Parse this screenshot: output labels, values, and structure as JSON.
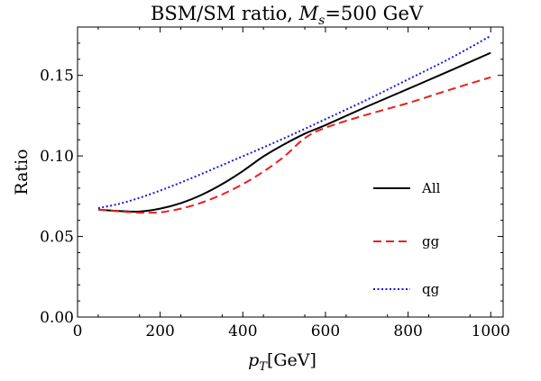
{
  "chart_data": {
    "type": "line",
    "title_prefix": "BSM/SM ratio, ",
    "title_var": "M",
    "title_sub": "s",
    "title_suffix": "=500 GeV",
    "xlabel_var": "p",
    "xlabel_sub": "T",
    "xlabel_unit": "[GeV]",
    "ylabel": "Ratio",
    "xlim": [
      0,
      1030
    ],
    "ylim": [
      0,
      0.18
    ],
    "xticks": [
      0,
      200,
      400,
      600,
      800,
      1000
    ],
    "xtick_labels": [
      "0",
      "200",
      "400",
      "600",
      "800",
      "1000"
    ],
    "yticks": [
      0,
      0.05,
      0.1,
      0.15
    ],
    "ytick_labels": [
      "0.00",
      "0.05",
      "0.10",
      "0.15"
    ],
    "grid": false,
    "legend_position": "right-middle",
    "series": [
      {
        "name": "All",
        "color": "#000000",
        "dash": "solid",
        "x": [
          50,
          100,
          150,
          200,
          250,
          300,
          350,
          400,
          450,
          500,
          550,
          600,
          700,
          800,
          900,
          1000
        ],
        "y": [
          0.0667,
          0.0658,
          0.0655,
          0.0673,
          0.0707,
          0.0758,
          0.0825,
          0.0906,
          0.0997,
          0.1072,
          0.1138,
          0.1191,
          0.1306,
          0.1416,
          0.1527,
          0.164
        ]
      },
      {
        "name": "gg",
        "color": "#e8201c",
        "dash": "dashed",
        "x": [
          50,
          100,
          150,
          200,
          250,
          300,
          350,
          400,
          450,
          500,
          550,
          600,
          700,
          800,
          900,
          1000
        ],
        "y": [
          0.0667,
          0.0656,
          0.0648,
          0.065,
          0.0673,
          0.071,
          0.0761,
          0.0825,
          0.0903,
          0.0996,
          0.111,
          0.1175,
          0.1256,
          0.1328,
          0.141,
          0.1488
        ]
      },
      {
        "name": "qg",
        "color": "#1818e0",
        "dash": "dotted",
        "x": [
          50,
          100,
          150,
          200,
          250,
          300,
          350,
          400,
          450,
          500,
          550,
          600,
          700,
          800,
          900,
          1000
        ],
        "y": [
          0.0676,
          0.0702,
          0.074,
          0.0785,
          0.0835,
          0.0888,
          0.0943,
          0.0998,
          0.1053,
          0.111,
          0.1168,
          0.1228,
          0.1348,
          0.1475,
          0.1603,
          0.1745
        ]
      }
    ]
  }
}
